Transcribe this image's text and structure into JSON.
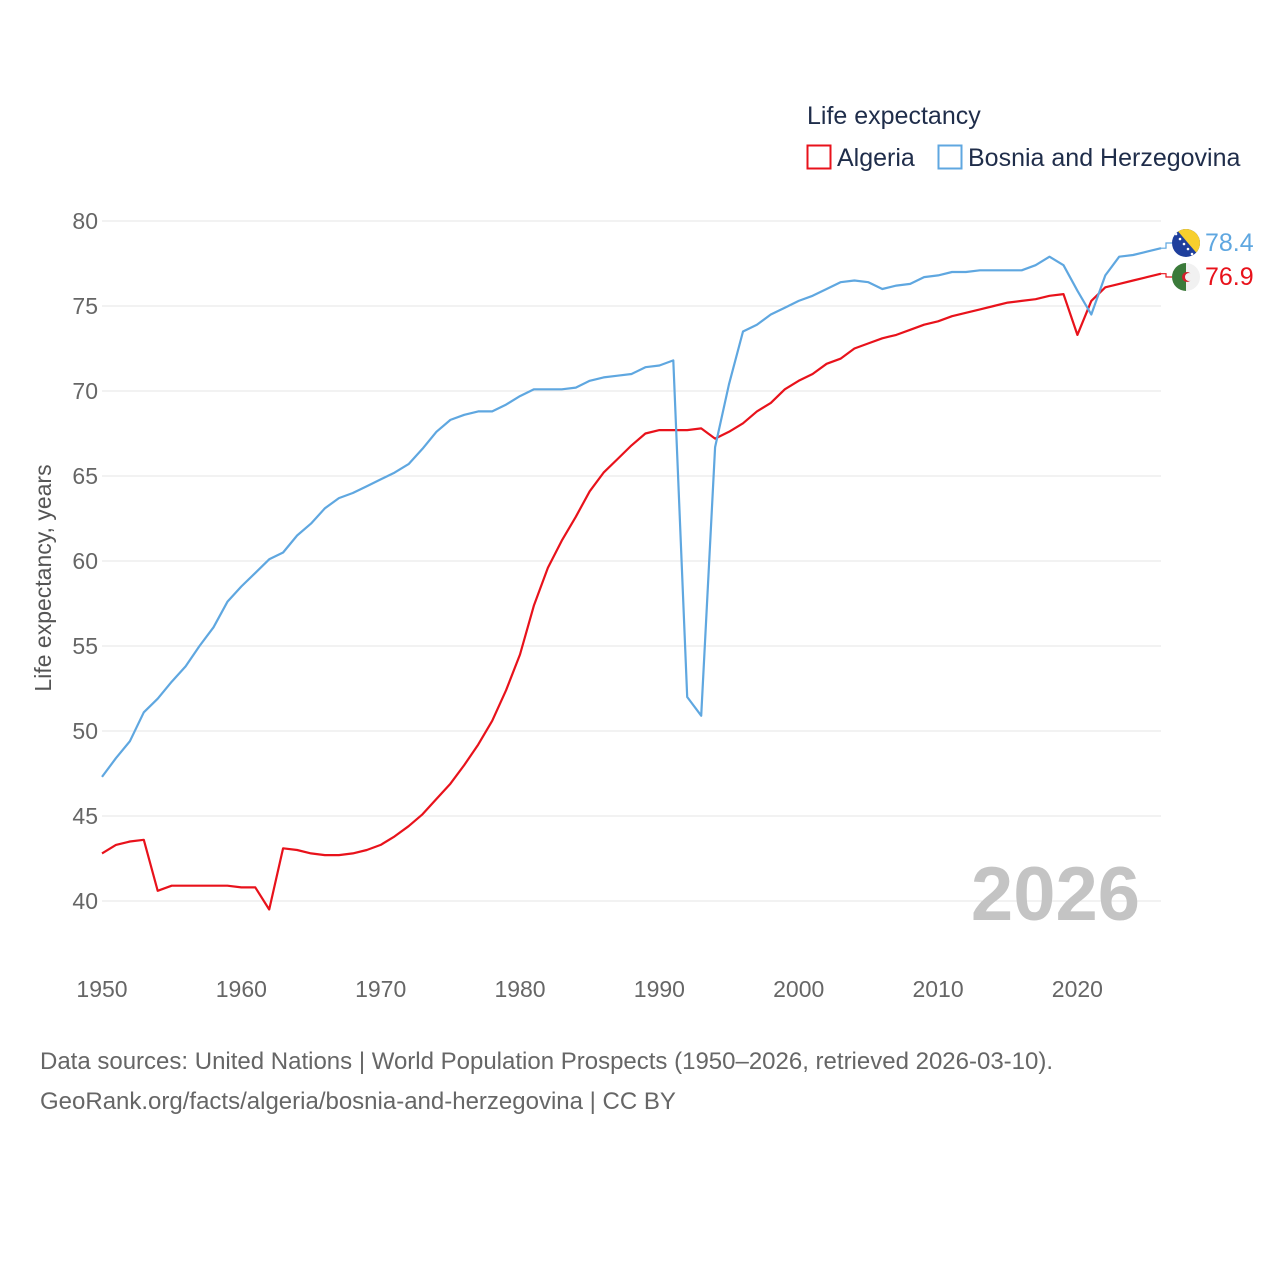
{
  "legend": {
    "title": "Life expectancy"
  },
  "year_stamp": "2026",
  "footer": {
    "sources": "Data sources: United Nations | World Population Prospects (1950–2026, retrieved 2026-03-10).",
    "credit": "GeoRank.org/facts/algeria/bosnia-and-herzegovina | CC BY"
  },
  "colors": {
    "algeria": "#e8121b",
    "bosnia": "#5fa7e0",
    "grid": "#e6e6e6"
  },
  "chart_data": {
    "type": "line",
    "title": "Life expectancy",
    "xlabel": "",
    "ylabel": "Life expectancy, years",
    "xlim": [
      1950,
      2026
    ],
    "ylim": [
      37,
      81
    ],
    "x_ticks": [
      1950,
      1960,
      1970,
      1980,
      1990,
      2000,
      2010,
      2020
    ],
    "y_ticks": [
      40,
      45,
      50,
      55,
      60,
      65,
      70,
      75,
      80
    ],
    "grid": true,
    "legend_position": "top-right",
    "x": [
      1950,
      1951,
      1952,
      1953,
      1954,
      1955,
      1956,
      1957,
      1958,
      1959,
      1960,
      1961,
      1962,
      1963,
      1964,
      1965,
      1966,
      1967,
      1968,
      1969,
      1970,
      1971,
      1972,
      1973,
      1974,
      1975,
      1976,
      1977,
      1978,
      1979,
      1980,
      1981,
      1982,
      1983,
      1984,
      1985,
      1986,
      1987,
      1988,
      1989,
      1990,
      1991,
      1992,
      1993,
      1994,
      1995,
      1996,
      1997,
      1998,
      1999,
      2000,
      2001,
      2002,
      2003,
      2004,
      2005,
      2006,
      2007,
      2008,
      2009,
      2010,
      2011,
      2012,
      2013,
      2014,
      2015,
      2016,
      2017,
      2018,
      2019,
      2020,
      2021,
      2022,
      2023,
      2024,
      2025,
      2026
    ],
    "series": [
      {
        "name": "Algeria",
        "color": "#e8121b",
        "end_label": "76.9",
        "values": [
          42.8,
          43.3,
          43.5,
          43.6,
          40.6,
          40.9,
          40.9,
          40.9,
          40.9,
          40.9,
          40.8,
          40.8,
          39.5,
          43.1,
          43.0,
          42.8,
          42.7,
          42.7,
          42.8,
          43.0,
          43.3,
          43.8,
          44.4,
          45.1,
          46.0,
          46.9,
          48.0,
          49.2,
          50.6,
          52.4,
          54.5,
          57.4,
          59.6,
          61.2,
          62.6,
          64.1,
          65.2,
          66.0,
          66.8,
          67.5,
          67.7,
          67.7,
          67.7,
          67.8,
          67.2,
          67.6,
          68.1,
          68.8,
          69.3,
          70.1,
          70.6,
          71.0,
          71.6,
          71.9,
          72.5,
          72.8,
          73.1,
          73.3,
          73.6,
          73.9,
          74.1,
          74.4,
          74.6,
          74.8,
          75.0,
          75.2,
          75.3,
          75.4,
          75.6,
          75.7,
          73.3,
          75.3,
          76.1,
          76.3,
          76.5,
          76.7,
          76.9
        ]
      },
      {
        "name": "Bosnia and Herzegovina",
        "color": "#5fa7e0",
        "end_label": "78.4",
        "values": [
          47.3,
          48.4,
          49.4,
          51.1,
          51.9,
          52.9,
          53.8,
          55.0,
          56.1,
          57.6,
          58.5,
          59.3,
          60.1,
          60.5,
          61.5,
          62.2,
          63.1,
          63.7,
          64.0,
          64.4,
          64.8,
          65.2,
          65.7,
          66.6,
          67.6,
          68.3,
          68.6,
          68.8,
          68.8,
          69.2,
          69.7,
          70.1,
          70.1,
          70.1,
          70.2,
          70.6,
          70.8,
          70.9,
          71.0,
          71.4,
          71.5,
          71.8,
          52.0,
          50.9,
          66.7,
          70.4,
          73.5,
          73.9,
          74.5,
          74.9,
          75.3,
          75.6,
          76.0,
          76.4,
          76.5,
          76.4,
          76.0,
          76.2,
          76.3,
          76.7,
          76.8,
          77.0,
          77.0,
          77.1,
          77.1,
          77.1,
          77.1,
          77.4,
          77.9,
          77.4,
          75.9,
          74.5,
          76.8,
          77.9,
          78.0,
          78.2,
          78.4
        ]
      }
    ]
  }
}
